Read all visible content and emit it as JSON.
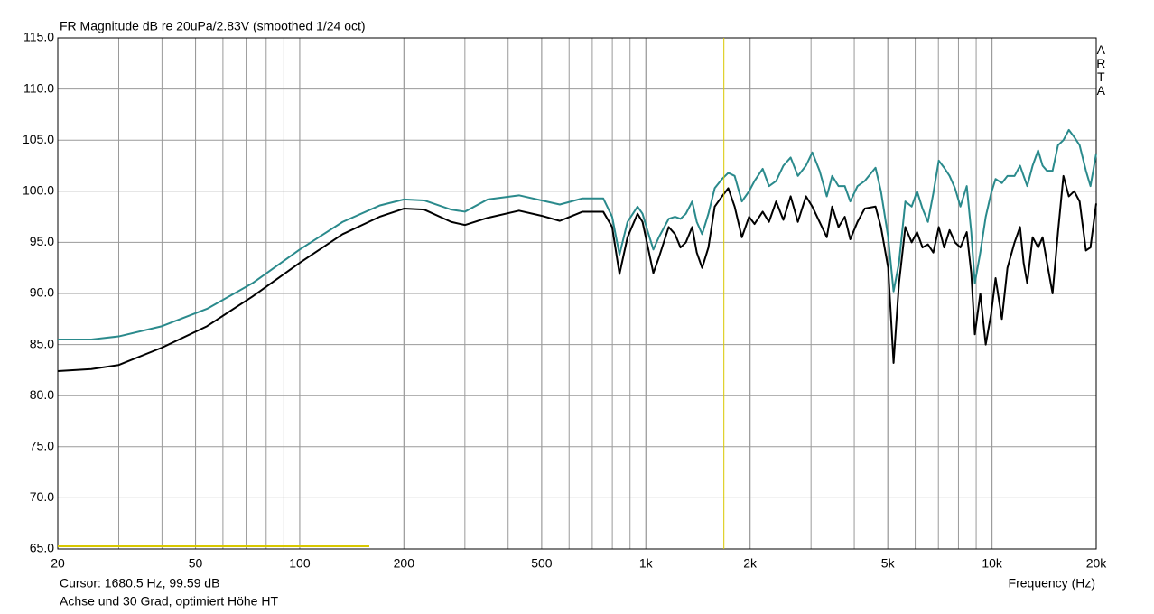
{
  "chart_data": {
    "type": "line",
    "title": "FR Magnitude dB re 20uPa/2.83V (smoothed 1/24 oct)",
    "watermark": "ARTA",
    "xlabel": "Frequency (Hz)",
    "cursor": {
      "x": 1680.5,
      "color": "#d8c800",
      "label": "Cursor: 1680.5 Hz, 99.59 dB"
    },
    "note": "Achse und 30 Grad, optimiert Höhe HT",
    "xscale": "log",
    "grid": true,
    "xlim": [
      20,
      20000
    ],
    "ylim": [
      65,
      115
    ],
    "xticks": [
      20,
      50,
      100,
      200,
      500,
      {
        "value": 1000,
        "label": "1k"
      },
      {
        "value": 2000,
        "label": "2k"
      },
      {
        "value": 5000,
        "label": "5k"
      },
      {
        "value": 10000,
        "label": "10k"
      },
      {
        "value": 20000,
        "label": "20k"
      }
    ],
    "yticks": [
      {
        "value": 65,
        "label": "65.0"
      },
      {
        "value": 70,
        "label": "70.0"
      },
      {
        "value": 75,
        "label": "75.0"
      },
      {
        "value": 80,
        "label": "80.0"
      },
      {
        "value": 85,
        "label": "85.0"
      },
      {
        "value": 90,
        "label": "90.0"
      },
      {
        "value": 95,
        "label": "95.0"
      },
      {
        "value": 100,
        "label": "100.0"
      },
      {
        "value": 105,
        "label": "105.0"
      },
      {
        "value": 110,
        "label": "110.0"
      },
      {
        "value": 115,
        "label": "115.0"
      }
    ],
    "x": [
      20,
      25,
      30,
      40,
      54,
      73,
      100,
      133,
      170,
      200,
      229,
      274,
      300,
      349,
      430,
      500,
      564,
      656,
      753,
      799,
      839,
      885,
      946,
      978,
      1014,
      1051,
      1090,
      1164,
      1214,
      1259,
      1305,
      1361,
      1403,
      1454,
      1516,
      1581,
      1660,
      1730,
      1805,
      1894,
      1987,
      2060,
      2175,
      2268,
      2379,
      2496,
      2620,
      2749,
      2901,
      3026,
      3176,
      3332,
      3453,
      3602,
      3756,
      3895,
      4087,
      4287,
      4607,
      4777,
      5012,
      5195,
      5386,
      5618,
      5860,
      6074,
      6298,
      6529,
      6768,
      7017,
      7274,
      7541,
      7817,
      8104,
      8453,
      8710,
      8920,
      9250,
      9590,
      9940,
      10240,
      10680,
      11080,
      11620,
      12050,
      12340,
      12640,
      13100,
      13590,
      14000,
      14420,
      14960,
      15510,
      16080,
      16670,
      17280,
      17910,
      18680,
      19250,
      20000
    ],
    "series": [
      {
        "color": "#2a8a8c",
        "values": [
          85.5,
          85.5,
          85.8,
          86.8,
          88.5,
          91.0,
          94.3,
          97.0,
          98.6,
          99.2,
          99.1,
          98.2,
          98.0,
          99.2,
          99.6,
          99.1,
          98.7,
          99.3,
          99.3,
          97.5,
          93.8,
          97.0,
          98.5,
          97.8,
          96.0,
          94.3,
          95.5,
          97.3,
          97.5,
          97.3,
          97.8,
          99.0,
          97.0,
          95.8,
          97.8,
          100.3,
          101.2,
          101.8,
          101.5,
          99.0,
          100.0,
          101.0,
          102.2,
          100.5,
          101.0,
          102.5,
          103.3,
          101.5,
          102.5,
          103.8,
          102.0,
          99.5,
          101.5,
          100.5,
          100.5,
          99.0,
          100.5,
          101.0,
          102.3,
          100.0,
          95.5,
          90.2,
          93.0,
          99.0,
          98.5,
          100.0,
          98.3,
          97.0,
          99.8,
          103.0,
          102.3,
          101.5,
          100.3,
          98.5,
          100.5,
          96.0,
          91.0,
          94.0,
          97.5,
          99.8,
          101.2,
          100.8,
          101.5,
          101.5,
          102.5,
          101.5,
          100.5,
          102.5,
          104.0,
          102.5,
          102.0,
          102.0,
          104.5,
          105.0,
          106.0,
          105.3,
          104.5,
          102.0,
          100.5,
          103.7
        ]
      },
      {
        "color": "#000000",
        "values": [
          82.4,
          82.6,
          83.0,
          84.7,
          86.8,
          89.7,
          93.0,
          95.8,
          97.5,
          98.3,
          98.2,
          97.0,
          96.7,
          97.4,
          98.1,
          97.6,
          97.1,
          98.0,
          98.0,
          96.5,
          91.9,
          95.5,
          97.8,
          97.0,
          94.5,
          92.0,
          93.5,
          96.5,
          95.8,
          94.5,
          95.0,
          96.5,
          94.0,
          92.5,
          94.5,
          98.5,
          99.5,
          100.3,
          98.5,
          95.5,
          97.5,
          96.8,
          98.0,
          97.0,
          99.0,
          97.2,
          99.5,
          97.0,
          99.5,
          98.5,
          97.0,
          95.5,
          98.5,
          96.5,
          97.5,
          95.3,
          97.0,
          98.3,
          98.5,
          96.5,
          92.5,
          83.2,
          91.0,
          96.5,
          95.0,
          96.0,
          94.5,
          94.8,
          94.0,
          96.5,
          94.5,
          96.2,
          95.0,
          94.5,
          96.0,
          92.0,
          86.0,
          90.0,
          85.0,
          88.0,
          91.5,
          87.5,
          92.5,
          95.0,
          96.5,
          93.0,
          91.0,
          95.5,
          94.5,
          95.5,
          93.0,
          90.0,
          96.0,
          101.5,
          99.5,
          100.0,
          99.0,
          94.2,
          94.5,
          98.8
        ]
      }
    ]
  }
}
